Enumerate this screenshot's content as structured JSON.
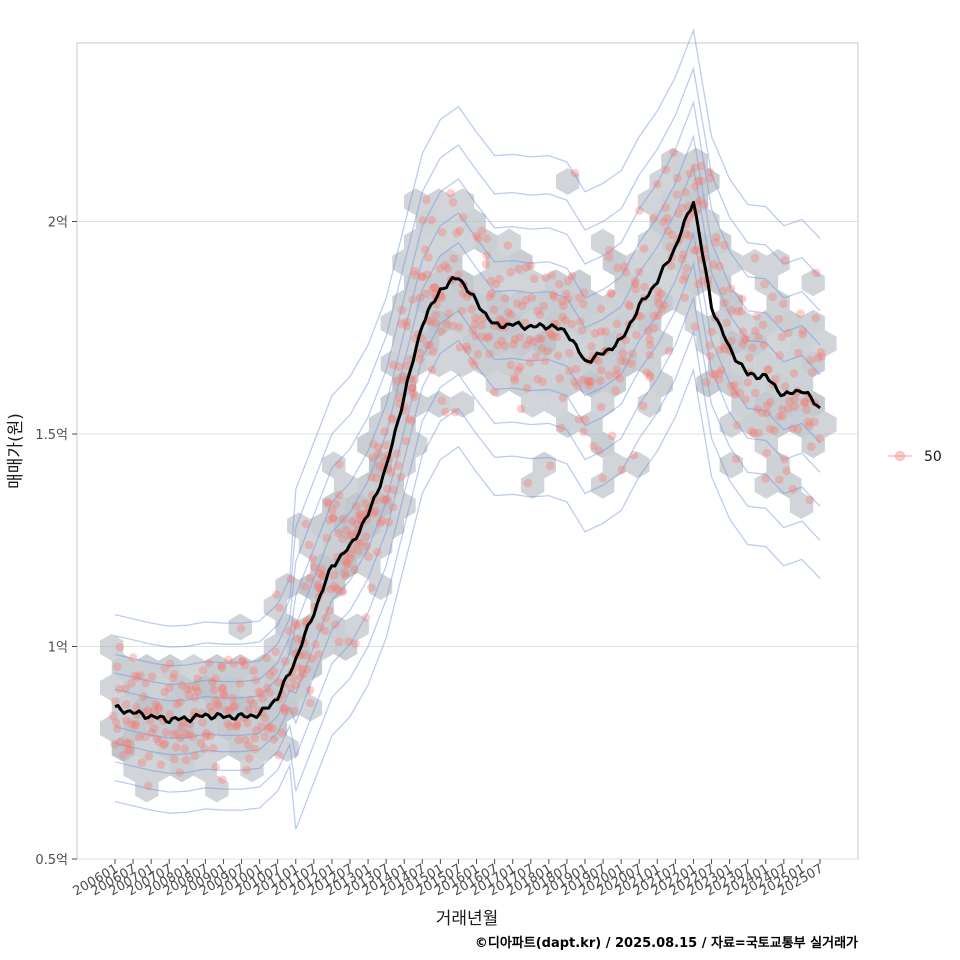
{
  "chart_data": {
    "type": "scatter",
    "xlabel": "거래년월",
    "ylabel": "매매가(원)",
    "caption": "©디아파트(dapt.kr) / 2025.08.15 / 자료=국토교통부 실거래가",
    "legend": {
      "position": "right",
      "entries": [
        {
          "name": "50",
          "color": "#F8766D"
        }
      ]
    },
    "y_range": [
      50000000,
      242000000
    ],
    "y_ticks": [
      {
        "value": 50000000,
        "label": "0.5억"
      },
      {
        "value": 100000000,
        "label": "1억"
      },
      {
        "value": 150000000,
        "label": "1.5억"
      },
      {
        "value": 200000000,
        "label": "2억"
      }
    ],
    "x_ticks": [
      "200601",
      "200607",
      "200701",
      "200707",
      "200801",
      "200807",
      "200901",
      "200907",
      "201001",
      "201007",
      "201101",
      "201107",
      "201201",
      "201207",
      "201301",
      "201307",
      "201401",
      "201407",
      "201501",
      "201507",
      "201601",
      "201607",
      "201701",
      "201707",
      "201801",
      "201807",
      "201901",
      "201907",
      "202001",
      "202007",
      "202101",
      "202107",
      "202201",
      "202207",
      "202301",
      "202307",
      "202401",
      "202407",
      "202501",
      "202507"
    ],
    "grid": true,
    "colors": {
      "points": "#F8766D",
      "trend": "#000000",
      "hex": "#B0B8BF",
      "contour": "#6B8FE0",
      "grid": "#E0E0E0",
      "frame": "#C8C8C8"
    },
    "trend_series": {
      "name": "moving-average",
      "points": [
        [
          "200601",
          85.5
        ],
        [
          "200607",
          84.5
        ],
        [
          "200701",
          83.5
        ],
        [
          "200707",
          82.8
        ],
        [
          "200801",
          83.0
        ],
        [
          "200807",
          83.8
        ],
        [
          "200901",
          83.5
        ],
        [
          "200907",
          83.5
        ],
        [
          "201001",
          84.0
        ],
        [
          "201007",
          88.0
        ],
        [
          "201101",
          97.0
        ],
        [
          "201107",
          108.0
        ],
        [
          "201201",
          119.0
        ],
        [
          "201207",
          123.5
        ],
        [
          "201301",
          131.0
        ],
        [
          "201307",
          142.0
        ],
        [
          "201401",
          159.0
        ],
        [
          "201407",
          176.0
        ],
        [
          "201501",
          184.0
        ],
        [
          "201507",
          187.0
        ],
        [
          "201601",
          181.0
        ],
        [
          "201607",
          175.5
        ],
        [
          "201701",
          175.8
        ],
        [
          "201707",
          175.2
        ],
        [
          "201801",
          175.5
        ],
        [
          "201807",
          174.0
        ],
        [
          "201901",
          167.0
        ],
        [
          "201907",
          169.0
        ],
        [
          "202001",
          172.0
        ],
        [
          "202007",
          180.0
        ],
        [
          "202101",
          186.0
        ],
        [
          "202107",
          194.0
        ],
        [
          "202201",
          205.0
        ],
        [
          "202207",
          180.0
        ],
        [
          "202301",
          170.0
        ],
        [
          "202307",
          164.0
        ],
        [
          "202401",
          163.5
        ],
        [
          "202407",
          159.0
        ],
        [
          "202501",
          160.5
        ],
        [
          "202507",
          156.0
        ]
      ]
    },
    "value_unit_note": "trend values in 백만원"
  }
}
